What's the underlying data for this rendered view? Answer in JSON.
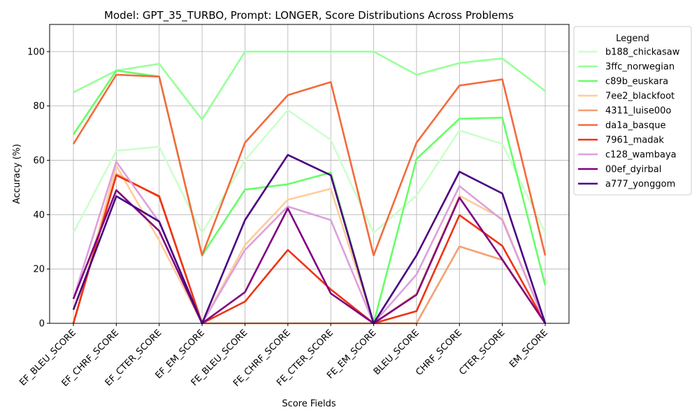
{
  "chart_data": {
    "type": "line",
    "title": "Model: GPT_35_TURBO, Prompt: LONGER, Score Distributions Across Problems",
    "xlabel": "Score Fields",
    "ylabel": "Accuracy (%)",
    "ylim": [
      0,
      110
    ],
    "yticks": [
      0,
      20,
      40,
      60,
      80,
      100
    ],
    "grid": true,
    "legend_title": "Legend",
    "legend_placement": "outside-right",
    "categories": [
      "EF_BLEU_SCORE",
      "EF_CHRF_SCORE",
      "EF_CTER_SCORE",
      "EF_EM_SCORE",
      "FE_BLEU_SCORE",
      "FE_CHRF_SCORE",
      "FE_CTER_SCORE",
      "FE_EM_SCORE",
      "BLEU_SCORE",
      "CHRF_SCORE",
      "CTER_SCORE",
      "EM_SCORE"
    ],
    "series": [
      {
        "name": "b188_chickasaw",
        "color": "#ccffcc",
        "values": [
          33.3,
          63.5,
          65.0,
          33.3,
          60.0,
          78.5,
          67.5,
          33.3,
          47.0,
          71.0,
          66.0,
          33.3
        ]
      },
      {
        "name": "3ffc_norwegian",
        "color": "#99ff99",
        "values": [
          85.0,
          93.0,
          95.5,
          75.0,
          100.0,
          100.0,
          100.0,
          100.0,
          91.5,
          95.8,
          97.5,
          85.5
        ]
      },
      {
        "name": "c89b_euskara",
        "color": "#66ff66",
        "values": [
          69.5,
          93.0,
          90.8,
          25.0,
          49.2,
          51.2,
          55.5,
          0.0,
          60.5,
          75.3,
          75.7,
          14.0
        ]
      },
      {
        "name": "7ee2_blackfoot",
        "color": "#ffcc99",
        "values": [
          0.0,
          58.0,
          30.5,
          0.0,
          28.8,
          45.5,
          49.5,
          0.0,
          11.0,
          47.0,
          38.5,
          0.0
        ]
      },
      {
        "name": "4311_luise00o",
        "color": "#f4a070",
        "values": [
          0.0,
          55.0,
          46.5,
          0.0,
          0.0,
          0.0,
          0.0,
          0.0,
          0.0,
          28.3,
          23.3,
          0.0
        ]
      },
      {
        "name": "da1a_basque",
        "color": "#f46a3a",
        "values": [
          66.0,
          91.5,
          90.8,
          25.0,
          66.5,
          84.0,
          88.8,
          25.0,
          66.5,
          87.5,
          89.8,
          25.0
        ]
      },
      {
        "name": "7961_madak",
        "color": "#ee3311",
        "values": [
          0.0,
          54.5,
          46.8,
          0.0,
          8.0,
          27.0,
          12.5,
          0.0,
          4.5,
          39.8,
          28.5,
          0.0
        ]
      },
      {
        "name": "c128_wambaya",
        "color": "#dda0dd",
        "values": [
          9.0,
          59.5,
          37.3,
          0.0,
          27.0,
          43.0,
          38.0,
          0.0,
          18.0,
          50.5,
          38.0,
          0.0
        ]
      },
      {
        "name": "00ef_dyirbal",
        "color": "#800080",
        "values": [
          9.0,
          49.0,
          34.0,
          0.0,
          11.5,
          42.3,
          11.0,
          0.0,
          10.5,
          46.3,
          23.5,
          0.0
        ]
      },
      {
        "name": "a777_yonggom",
        "color": "#4b0082",
        "values": [
          5.0,
          46.8,
          37.5,
          0.0,
          38.0,
          62.0,
          54.5,
          0.0,
          25.0,
          55.8,
          47.8,
          0.0
        ]
      }
    ]
  }
}
